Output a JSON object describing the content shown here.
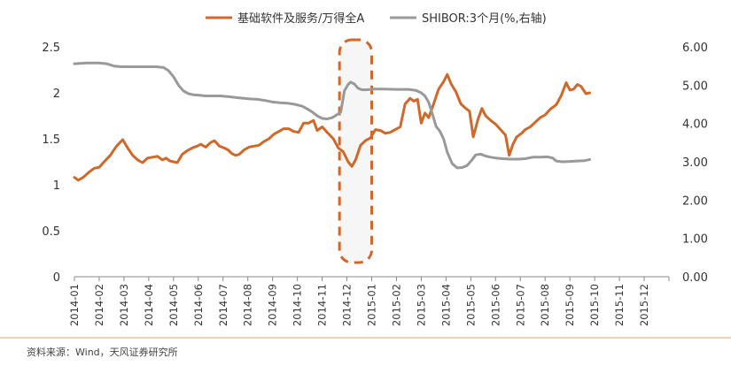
{
  "chart_data": {
    "type": "line",
    "title": "",
    "xlabel": "",
    "ylabel": "",
    "x_ticks": [
      "2014-01",
      "2014-02",
      "2014-03",
      "2014-04",
      "2014-05",
      "2014-06",
      "2014-07",
      "2014-08",
      "2014-09",
      "2014-10",
      "2014-11",
      "2014-12",
      "2015-01",
      "2015-02",
      "2015-03",
      "2015-04",
      "2015-05",
      "2015-06",
      "2015-07",
      "2015-08",
      "2015-09",
      "2015-10",
      "2015-11",
      "2015-12"
    ],
    "y_left": {
      "range": [
        0,
        2.5
      ],
      "ticks": [
        "0",
        "0.5",
        "1",
        "1.5",
        "2",
        "2.5"
      ]
    },
    "y_right": {
      "range": [
        0,
        6
      ],
      "ticks": [
        "0.00",
        "1.00",
        "2.00",
        "3.00",
        "4.00",
        "5.00",
        "6.00"
      ]
    },
    "legend_position": "top",
    "highlight": {
      "x_range": [
        10.7,
        12.0
      ],
      "note": "dashed rounded box"
    },
    "series": [
      {
        "name": "基础软件及服务/万得全A",
        "axis": "left",
        "color": "#D0682A",
        "points": [
          [
            0,
            1.08
          ],
          [
            0.15,
            1.05
          ],
          [
            0.35,
            1.08
          ],
          [
            0.6,
            1.14
          ],
          [
            0.8,
            1.18
          ],
          [
            1.0,
            1.19
          ],
          [
            1.2,
            1.25
          ],
          [
            1.45,
            1.32
          ],
          [
            1.7,
            1.42
          ],
          [
            1.95,
            1.49
          ],
          [
            2.15,
            1.4
          ],
          [
            2.35,
            1.32
          ],
          [
            2.55,
            1.27
          ],
          [
            2.75,
            1.24
          ],
          [
            2.95,
            1.29
          ],
          [
            3.15,
            1.3
          ],
          [
            3.35,
            1.31
          ],
          [
            3.55,
            1.27
          ],
          [
            3.7,
            1.29
          ],
          [
            3.85,
            1.26
          ],
          [
            4.0,
            1.25
          ],
          [
            4.15,
            1.24
          ],
          [
            4.35,
            1.33
          ],
          [
            4.55,
            1.37
          ],
          [
            4.75,
            1.4
          ],
          [
            4.95,
            1.42
          ],
          [
            5.1,
            1.44
          ],
          [
            5.3,
            1.41
          ],
          [
            5.5,
            1.46
          ],
          [
            5.65,
            1.48
          ],
          [
            5.85,
            1.42
          ],
          [
            6.05,
            1.4
          ],
          [
            6.2,
            1.38
          ],
          [
            6.35,
            1.34
          ],
          [
            6.5,
            1.32
          ],
          [
            6.65,
            1.33
          ],
          [
            6.85,
            1.38
          ],
          [
            7.05,
            1.41
          ],
          [
            7.25,
            1.42
          ],
          [
            7.45,
            1.43
          ],
          [
            7.65,
            1.47
          ],
          [
            7.85,
            1.5
          ],
          [
            8.05,
            1.55
          ],
          [
            8.25,
            1.58
          ],
          [
            8.45,
            1.61
          ],
          [
            8.65,
            1.61
          ],
          [
            8.85,
            1.58
          ],
          [
            9.05,
            1.57
          ],
          [
            9.25,
            1.67
          ],
          [
            9.45,
            1.67
          ],
          [
            9.65,
            1.7
          ],
          [
            9.8,
            1.59
          ],
          [
            10.0,
            1.63
          ],
          [
            10.2,
            1.57
          ],
          [
            10.45,
            1.5
          ],
          [
            10.65,
            1.4
          ],
          [
            10.85,
            1.36
          ],
          [
            11.05,
            1.25
          ],
          [
            11.2,
            1.2
          ],
          [
            11.35,
            1.27
          ],
          [
            11.55,
            1.43
          ],
          [
            11.75,
            1.48
          ],
          [
            11.95,
            1.51
          ],
          [
            12.15,
            1.6
          ],
          [
            12.35,
            1.59
          ],
          [
            12.55,
            1.56
          ],
          [
            12.75,
            1.57
          ],
          [
            12.95,
            1.6
          ],
          [
            13.15,
            1.63
          ],
          [
            13.35,
            1.88
          ],
          [
            13.55,
            1.94
          ],
          [
            13.7,
            1.91
          ],
          [
            13.85,
            1.93
          ],
          [
            14.0,
            1.67
          ],
          [
            14.15,
            1.78
          ],
          [
            14.3,
            1.73
          ],
          [
            14.5,
            1.88
          ],
          [
            14.7,
            2.04
          ],
          [
            14.9,
            2.12
          ],
          [
            15.05,
            2.2
          ],
          [
            15.2,
            2.1
          ],
          [
            15.4,
            2.01
          ],
          [
            15.6,
            1.88
          ],
          [
            15.8,
            1.83
          ],
          [
            15.95,
            1.8
          ],
          [
            16.1,
            1.52
          ],
          [
            16.3,
            1.72
          ],
          [
            16.45,
            1.83
          ],
          [
            16.6,
            1.75
          ],
          [
            16.8,
            1.7
          ],
          [
            17.0,
            1.66
          ],
          [
            17.2,
            1.6
          ],
          [
            17.4,
            1.54
          ],
          [
            17.55,
            1.32
          ],
          [
            17.7,
            1.44
          ],
          [
            17.85,
            1.52
          ],
          [
            18.05,
            1.56
          ],
          [
            18.2,
            1.6
          ],
          [
            18.4,
            1.63
          ],
          [
            18.6,
            1.68
          ],
          [
            18.8,
            1.73
          ],
          [
            19.0,
            1.76
          ],
          [
            19.2,
            1.82
          ],
          [
            19.45,
            1.87
          ],
          [
            19.65,
            1.97
          ],
          [
            19.85,
            2.11
          ],
          [
            20.0,
            2.03
          ],
          [
            20.15,
            2.04
          ],
          [
            20.3,
            2.09
          ],
          [
            20.45,
            2.07
          ],
          [
            20.65,
            1.99
          ],
          [
            20.8,
            2.0
          ]
        ]
      },
      {
        "name": "SHIBOR:3个月(%,右轴)",
        "axis": "right",
        "color": "#999999",
        "points": [
          [
            0,
            5.56
          ],
          [
            0.5,
            5.58
          ],
          [
            1.0,
            5.58
          ],
          [
            1.3,
            5.56
          ],
          [
            1.6,
            5.5
          ],
          [
            1.9,
            5.48
          ],
          [
            2.5,
            5.48
          ],
          [
            3.0,
            5.48
          ],
          [
            3.3,
            5.48
          ],
          [
            3.6,
            5.46
          ],
          [
            3.8,
            5.38
          ],
          [
            4.0,
            5.22
          ],
          [
            4.2,
            5.0
          ],
          [
            4.4,
            4.85
          ],
          [
            4.6,
            4.78
          ],
          [
            4.8,
            4.75
          ],
          [
            5.0,
            4.74
          ],
          [
            5.3,
            4.72
          ],
          [
            5.6,
            4.72
          ],
          [
            5.9,
            4.72
          ],
          [
            6.2,
            4.7
          ],
          [
            6.5,
            4.68
          ],
          [
            6.8,
            4.66
          ],
          [
            7.1,
            4.64
          ],
          [
            7.4,
            4.63
          ],
          [
            7.7,
            4.6
          ],
          [
            8.0,
            4.56
          ],
          [
            8.3,
            4.54
          ],
          [
            8.6,
            4.53
          ],
          [
            8.9,
            4.5
          ],
          [
            9.2,
            4.45
          ],
          [
            9.4,
            4.38
          ],
          [
            9.6,
            4.3
          ],
          [
            9.8,
            4.2
          ],
          [
            10.0,
            4.13
          ],
          [
            10.2,
            4.12
          ],
          [
            10.4,
            4.15
          ],
          [
            10.6,
            4.23
          ],
          [
            10.75,
            4.3
          ],
          [
            10.9,
            4.85
          ],
          [
            11.05,
            5.02
          ],
          [
            11.15,
            5.08
          ],
          [
            11.3,
            5.03
          ],
          [
            11.45,
            4.92
          ],
          [
            11.6,
            4.88
          ],
          [
            11.8,
            4.88
          ],
          [
            12.1,
            4.9
          ],
          [
            12.5,
            4.9
          ],
          [
            13.0,
            4.89
          ],
          [
            13.5,
            4.89
          ],
          [
            13.8,
            4.86
          ],
          [
            14.0,
            4.8
          ],
          [
            14.15,
            4.72
          ],
          [
            14.3,
            4.55
          ],
          [
            14.45,
            4.25
          ],
          [
            14.6,
            3.92
          ],
          [
            14.75,
            3.8
          ],
          [
            14.9,
            3.6
          ],
          [
            15.05,
            3.25
          ],
          [
            15.25,
            2.95
          ],
          [
            15.45,
            2.84
          ],
          [
            15.65,
            2.85
          ],
          [
            15.85,
            2.9
          ],
          [
            16.05,
            3.05
          ],
          [
            16.2,
            3.18
          ],
          [
            16.4,
            3.2
          ],
          [
            16.6,
            3.15
          ],
          [
            16.8,
            3.12
          ],
          [
            17.0,
            3.1
          ],
          [
            17.3,
            3.08
          ],
          [
            17.6,
            3.07
          ],
          [
            17.9,
            3.07
          ],
          [
            18.2,
            3.08
          ],
          [
            18.5,
            3.12
          ],
          [
            18.8,
            3.12
          ],
          [
            19.1,
            3.13
          ],
          [
            19.3,
            3.1
          ],
          [
            19.45,
            3.02
          ],
          [
            19.7,
            3.0
          ],
          [
            20.0,
            3.01
          ],
          [
            20.3,
            3.02
          ],
          [
            20.6,
            3.03
          ],
          [
            20.8,
            3.06
          ]
        ]
      }
    ]
  },
  "source_text": "资料来源：Wind，天风证券研究所"
}
